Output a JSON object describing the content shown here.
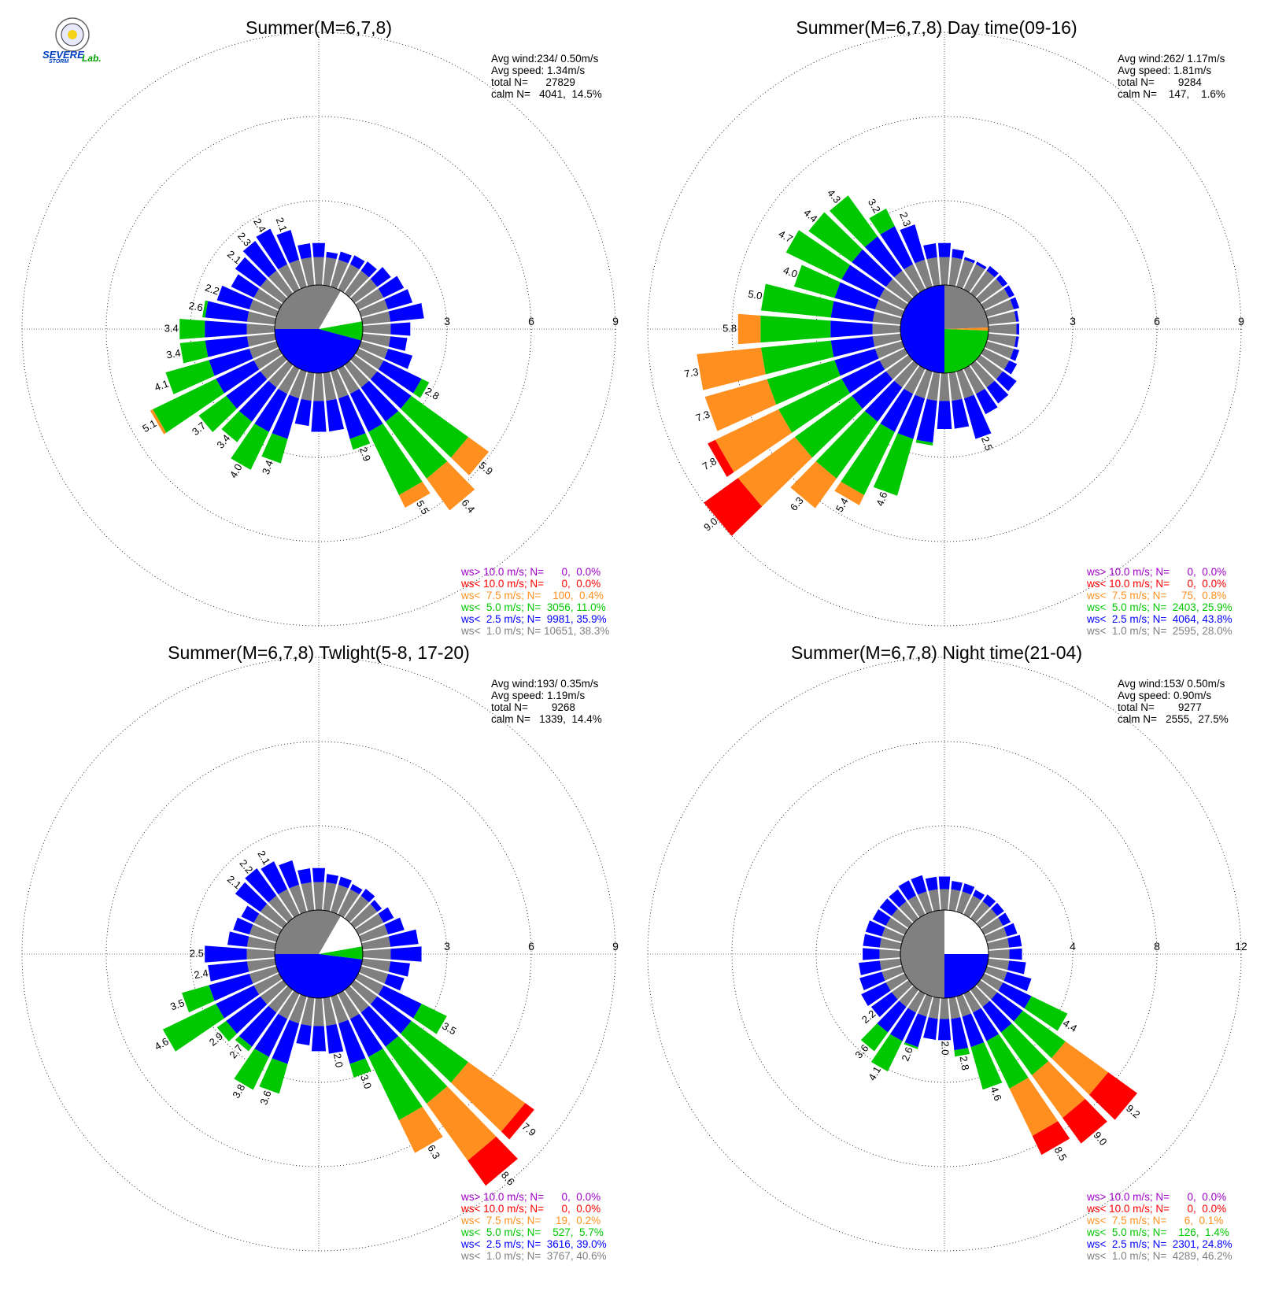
{
  "logo": {
    "text_main": "SEVERE",
    "text_sub": "STORM",
    "text_lab": "Lab."
  },
  "colors": {
    "gt10": "#a000c8",
    "lt10": "#ff0000",
    "lt75": "#ff9020",
    "lt5": "#00c800",
    "lt25": "#0000ff",
    "lt1": "#808080",
    "calm": "#ffffff"
  },
  "chart_data": [
    {
      "type": "windrose",
      "title": "Summer(M=6,7,8)",
      "ring_labels": [
        "3",
        "6",
        "9"
      ],
      "rmax": 9,
      "stats": {
        "avg_wind": "Avg wind:234/ 0.50m/s",
        "avg_speed": "Avg speed: 1.34m/s",
        "total": "total N=      27829",
        "calm": "calm N=   4041,  14.5%"
      },
      "legend": [
        "ws> 10.0 m/s; N=      0,  0.0%",
        "ws< 10.0 m/s; N=      0,  0.0%",
        "ws<  7.5 m/s; N=    100,  0.4%",
        "ws<  5.0 m/s; N=  3056, 11.0%",
        "ws<  2.5 m/s; N=  9981, 35.9%",
        "ws<  1.0 m/s; N= 10651, 38.3%"
      ],
      "calm_pie": [
        {
          "from": 30,
          "to": 80,
          "color": "calm"
        },
        {
          "from": 80,
          "to": 105,
          "color": "lt5"
        },
        {
          "from": 105,
          "to": 270,
          "color": "lt25"
        },
        {
          "from": 270,
          "to": 390,
          "color": "lt1"
        }
      ],
      "bars": [
        {
          "dir": 10,
          "total": 1.2
        },
        {
          "dir": 20,
          "total": 1.3
        },
        {
          "dir": 30,
          "total": 1.35
        },
        {
          "dir": 40,
          "total": 1.4
        },
        {
          "dir": 50,
          "total": 1.6
        },
        {
          "dir": 60,
          "total": 1.8
        },
        {
          "dir": 70,
          "total": 1.9
        },
        {
          "dir": 80,
          "total": 2.2
        },
        {
          "dir": 90,
          "total": 1.7
        },
        {
          "dir": 100,
          "total": 1.6
        },
        {
          "dir": 110,
          "total": 1.9
        },
        {
          "dir": 120,
          "total": 2.8,
          "label": "2.8"
        },
        {
          "dir": 130,
          "total": 5.9,
          "label": "5.9"
        },
        {
          "dir": 140,
          "total": 6.4,
          "label": "6.4"
        },
        {
          "dir": 150,
          "total": 5.5,
          "label": "5.5"
        },
        {
          "dir": 160,
          "total": 2.9,
          "label": "2.9"
        },
        {
          "dir": 170,
          "total": 2.1
        },
        {
          "dir": 180,
          "total": 2.1
        },
        {
          "dir": 190,
          "total": 1.9
        },
        {
          "dir": 200,
          "total": 3.4,
          "label": "3.4"
        },
        {
          "dir": 210,
          "total": 4.0,
          "label": "4.0"
        },
        {
          "dir": 220,
          "total": 3.4,
          "label": "3.4"
        },
        {
          "dir": 230,
          "total": 3.7,
          "label": "3.7"
        },
        {
          "dir": 240,
          "total": 5.1,
          "label": "5.1"
        },
        {
          "dir": 250,
          "total": 4.1,
          "label": "4.1"
        },
        {
          "dir": 260,
          "total": 3.4,
          "label": "3.4"
        },
        {
          "dir": 270,
          "total": 3.4,
          "label": "3.4"
        },
        {
          "dir": 280,
          "total": 2.6,
          "label": "2.6"
        },
        {
          "dir": 290,
          "total": 2.2,
          "label": "2.2"
        },
        {
          "dir": 300,
          "total": 1.9
        },
        {
          "dir": 310,
          "total": 2.1,
          "label": "2.1"
        },
        {
          "dir": 320,
          "total": 2.3,
          "label": "2.3"
        },
        {
          "dir": 330,
          "total": 2.4,
          "label": "2.4"
        },
        {
          "dir": 340,
          "total": 2.1,
          "label": "2.1"
        },
        {
          "dir": 350,
          "total": 1.5
        },
        {
          "dir": 360,
          "total": 1.5
        }
      ]
    },
    {
      "type": "windrose",
      "title": "Summer(M=6,7,8) Day time(09-16)",
      "ring_labels": [
        "3",
        "6",
        "9"
      ],
      "rmax": 9,
      "stats": {
        "avg_wind": "Avg wind:262/ 1.17m/s",
        "avg_speed": "Avg speed: 1.81m/s",
        "total": "total N=        9284",
        "calm": "calm N=    147,    1.6%"
      },
      "legend": [
        "ws> 10.0 m/s; N=      0,  0.0%",
        "ws< 10.0 m/s; N=      0,  0.0%",
        "ws<  7.5 m/s; N=     75,  0.8%",
        "ws<  5.0 m/s; N=  2403, 25.9%",
        "ws<  2.5 m/s; N=  4064, 43.8%",
        "ws<  1.0 m/s; N=  2595, 28.0%"
      ],
      "calm_pie": [
        {
          "from": 0,
          "to": 88,
          "color": "lt1"
        },
        {
          "from": 88,
          "to": 92,
          "color": "lt75"
        },
        {
          "from": 92,
          "to": 180,
          "color": "lt5"
        },
        {
          "from": 180,
          "to": 360,
          "color": "lt25"
        }
      ],
      "bars": [
        {
          "dir": 10,
          "total": 1.3
        },
        {
          "dir": 20,
          "total": 1.1
        },
        {
          "dir": 30,
          "total": 1.1
        },
        {
          "dir": 40,
          "total": 1.2
        },
        {
          "dir": 50,
          "total": 1.2
        },
        {
          "dir": 60,
          "total": 1.2
        },
        {
          "dir": 70,
          "total": 1.2
        },
        {
          "dir": 80,
          "total": 1.1
        },
        {
          "dir": 90,
          "total": 1.1
        },
        {
          "dir": 100,
          "total": 1.1
        },
        {
          "dir": 110,
          "total": 1.2
        },
        {
          "dir": 120,
          "total": 1.3
        },
        {
          "dir": 130,
          "total": 1.6
        },
        {
          "dir": 140,
          "total": 1.7
        },
        {
          "dir": 150,
          "total": 1.8
        },
        {
          "dir": 160,
          "total": 2.5,
          "label": "2.5"
        },
        {
          "dir": 170,
          "total": 2.0
        },
        {
          "dir": 180,
          "total": 2.0
        },
        {
          "dir": 190,
          "total": 2.6
        },
        {
          "dir": 200,
          "total": 4.6,
          "label": "4.6"
        },
        {
          "dir": 210,
          "total": 5.4,
          "label": "5.4"
        },
        {
          "dir": 220,
          "total": 6.3,
          "label": "6.3"
        },
        {
          "dir": 230,
          "total": 9.0,
          "label": "9.0"
        },
        {
          "dir": 240,
          "total": 7.8,
          "label": "7.8"
        },
        {
          "dir": 250,
          "total": 7.3,
          "label": "7.3"
        },
        {
          "dir": 260,
          "total": 7.3,
          "label": "7.3"
        },
        {
          "dir": 270,
          "total": 5.8,
          "label": "5.8"
        },
        {
          "dir": 280,
          "total": 5.0,
          "label": "5.0"
        },
        {
          "dir": 290,
          "total": 4.0,
          "label": "4.0"
        },
        {
          "dir": 300,
          "total": 4.7,
          "label": "4.7"
        },
        {
          "dir": 310,
          "total": 4.4,
          "label": "4.4"
        },
        {
          "dir": 320,
          "total": 4.3,
          "label": "4.3"
        },
        {
          "dir": 330,
          "total": 3.2,
          "label": "3.2"
        },
        {
          "dir": 340,
          "total": 2.3,
          "label": "2.3"
        },
        {
          "dir": 350,
          "total": 1.5
        },
        {
          "dir": 360,
          "total": 1.5
        }
      ]
    },
    {
      "type": "windrose",
      "title": "Summer(M=6,7,8) Twlight(5-8, 17-20)",
      "ring_labels": [
        "3",
        "6",
        "9"
      ],
      "rmax": 9,
      "stats": {
        "avg_wind": "Avg wind:193/ 0.35m/s",
        "avg_speed": "Avg speed: 1.19m/s",
        "total": "total N=        9268",
        "calm": "calm N=   1339,  14.4%"
      },
      "legend": [
        "ws> 10.0 m/s; N=      0,  0.0%",
        "ws< 10.0 m/s; N=      0,  0.0%",
        "ws<  7.5 m/s; N=     19,  0.2%",
        "ws<  5.0 m/s; N=    527,  5.7%",
        "ws<  2.5 m/s; N=  3616, 39.0%",
        "ws<  1.0 m/s; N=  3767, 40.6%"
      ],
      "calm_pie": [
        {
          "from": 30,
          "to": 80,
          "color": "calm"
        },
        {
          "from": 80,
          "to": 97,
          "color": "lt5"
        },
        {
          "from": 97,
          "to": 270,
          "color": "lt25"
        },
        {
          "from": 270,
          "to": 390,
          "color": "lt1"
        }
      ],
      "bars": [
        {
          "dir": 10,
          "total": 1.3
        },
        {
          "dir": 20,
          "total": 1.3
        },
        {
          "dir": 30,
          "total": 1.2
        },
        {
          "dir": 40,
          "total": 1.3
        },
        {
          "dir": 50,
          "total": 1.2
        },
        {
          "dir": 60,
          "total": 1.4
        },
        {
          "dir": 70,
          "total": 1.6
        },
        {
          "dir": 80,
          "total": 2.0
        },
        {
          "dir": 90,
          "total": 2.1
        },
        {
          "dir": 100,
          "total": 1.7
        },
        {
          "dir": 110,
          "total": 1.6
        },
        {
          "dir": 120,
          "total": 3.5,
          "label": "3.5"
        },
        {
          "dir": 130,
          "total": 7.9,
          "label": "7.9"
        },
        {
          "dir": 140,
          "total": 8.6,
          "label": "8.6"
        },
        {
          "dir": 150,
          "total": 6.3,
          "label": "6.3"
        },
        {
          "dir": 160,
          "total": 3.0,
          "label": "3.0"
        },
        {
          "dir": 170,
          "total": 2.0,
          "label": "2.0"
        },
        {
          "dir": 180,
          "total": 1.9
        },
        {
          "dir": 190,
          "total": 1.7
        },
        {
          "dir": 200,
          "total": 3.6,
          "label": "3.6"
        },
        {
          "dir": 210,
          "total": 3.8,
          "label": "3.8"
        },
        {
          "dir": 220,
          "total": 2.7,
          "label": "2.7"
        },
        {
          "dir": 230,
          "total": 2.9,
          "label": "2.9"
        },
        {
          "dir": 240,
          "total": 4.6,
          "label": "4.6"
        },
        {
          "dir": 250,
          "total": 3.5,
          "label": "3.5"
        },
        {
          "dir": 260,
          "total": 2.4,
          "label": "2.4"
        },
        {
          "dir": 270,
          "total": 2.5,
          "label": "2.5"
        },
        {
          "dir": 280,
          "total": 1.7
        },
        {
          "dir": 290,
          "total": 1.6
        },
        {
          "dir": 300,
          "total": 1.5
        },
        {
          "dir": 310,
          "total": 2.1,
          "label": "2.1"
        },
        {
          "dir": 320,
          "total": 2.2,
          "label": "2.2"
        },
        {
          "dir": 330,
          "total": 2.1,
          "label": "2.1"
        },
        {
          "dir": 340,
          "total": 1.9
        },
        {
          "dir": 350,
          "total": 1.5
        },
        {
          "dir": 360,
          "total": 1.5
        }
      ]
    },
    {
      "type": "windrose",
      "title": "Summer(M=6,7,8) Night time(21-04)",
      "ring_labels": [
        "4",
        "8",
        "12"
      ],
      "rmax": 12,
      "stats": {
        "avg_wind": "Avg wind:153/ 0.50m/s",
        "avg_speed": "Avg speed: 0.90m/s",
        "total": "total N=        9277",
        "calm": "calm N=   2555,  27.5%"
      },
      "legend": [
        "ws> 10.0 m/s; N=      0,  0.0%",
        "ws< 10.0 m/s; N=      0,  0.0%",
        "ws<  7.5 m/s; N=      6,  0.1%",
        "ws<  5.0 m/s; N=    126,  1.4%",
        "ws<  2.5 m/s; N=  2301, 24.8%",
        "ws<  1.0 m/s; N=  4289, 46.2%"
      ],
      "calm_pie": [
        {
          "from": 0,
          "to": 90,
          "color": "calm"
        },
        {
          "from": 90,
          "to": 180,
          "color": "lt25"
        },
        {
          "from": 180,
          "to": 360,
          "color": "lt1"
        }
      ],
      "bars": [
        {
          "dir": 10,
          "total": 1.4
        },
        {
          "dir": 20,
          "total": 1.4
        },
        {
          "dir": 30,
          "total": 1.3
        },
        {
          "dir": 40,
          "total": 1.4
        },
        {
          "dir": 50,
          "total": 1.4
        },
        {
          "dir": 60,
          "total": 1.4
        },
        {
          "dir": 70,
          "total": 1.5
        },
        {
          "dir": 80,
          "total": 1.6
        },
        {
          "dir": 90,
          "total": 1.6
        },
        {
          "dir": 100,
          "total": 1.8
        },
        {
          "dir": 110,
          "total": 2.2
        },
        {
          "dir": 120,
          "total": 4.4,
          "label": "4.4"
        },
        {
          "dir": 130,
          "total": 9.2,
          "label": "9.2"
        },
        {
          "dir": 140,
          "total": 9.0,
          "label": "9.0"
        },
        {
          "dir": 150,
          "total": 8.5,
          "label": "8.5"
        },
        {
          "dir": 160,
          "total": 4.6,
          "label": "4.6"
        },
        {
          "dir": 170,
          "total": 2.8,
          "label": "2.8"
        },
        {
          "dir": 180,
          "total": 2.0,
          "label": "2.0"
        },
        {
          "dir": 190,
          "total": 2.0
        },
        {
          "dir": 200,
          "total": 2.6,
          "label": "2.6"
        },
        {
          "dir": 210,
          "total": 4.1,
          "label": "4.1"
        },
        {
          "dir": 220,
          "total": 3.6,
          "label": "3.6"
        },
        {
          "dir": 230,
          "total": 2.2,
          "label": "2.2"
        },
        {
          "dir": 240,
          "total": 2.3
        },
        {
          "dir": 250,
          "total": 2.1
        },
        {
          "dir": 260,
          "total": 2.0
        },
        {
          "dir": 270,
          "total": 1.8
        },
        {
          "dir": 280,
          "total": 1.8
        },
        {
          "dir": 290,
          "total": 1.8
        },
        {
          "dir": 300,
          "total": 1.7
        },
        {
          "dir": 310,
          "total": 1.7
        },
        {
          "dir": 320,
          "total": 1.7
        },
        {
          "dir": 330,
          "total": 1.8
        },
        {
          "dir": 340,
          "total": 1.8
        },
        {
          "dir": 350,
          "total": 1.6
        },
        {
          "dir": 360,
          "total": 1.6
        }
      ]
    }
  ]
}
